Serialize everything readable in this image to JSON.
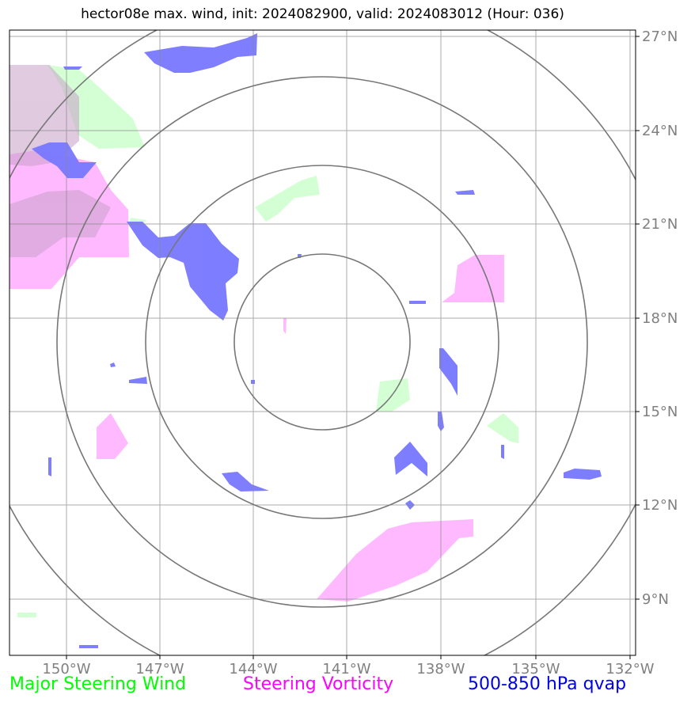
{
  "title": "hector08e max. wind, init: 2024082900, valid: 2024083012 (Hour: 036)",
  "map": {
    "lon_labels": [
      "150°W",
      "147°W",
      "144°W",
      "141°W",
      "138°W",
      "135°W",
      "132°W"
    ],
    "lat_labels": [
      "27°N",
      "24°N",
      "21°N",
      "18°N",
      "15°N",
      "12°N",
      "9°N"
    ],
    "lon_values": [
      -150,
      -147,
      -144,
      -141,
      -138,
      -135,
      -132
    ],
    "lat_values": [
      27,
      24,
      21,
      18,
      15,
      12,
      9
    ],
    "extent": {
      "lon_min": -152,
      "lon_max": -132,
      "lat_min": 7.5,
      "lat_max": 27.3
    },
    "range_rings_center": {
      "lon": -141.8,
      "lat": 17.3
    },
    "range_ring_count": 4
  },
  "legend": {
    "green": "Major Steering Wind",
    "magenta": "Steering Vorticity",
    "blue": "500-850 hPa qvap"
  },
  "colors": {
    "wind": "#ccffcc",
    "vorticity": "#ffb3ff",
    "qvap": "#7777ff",
    "grid": "#888888",
    "ring": "#777777",
    "tick_label": "#808080"
  }
}
